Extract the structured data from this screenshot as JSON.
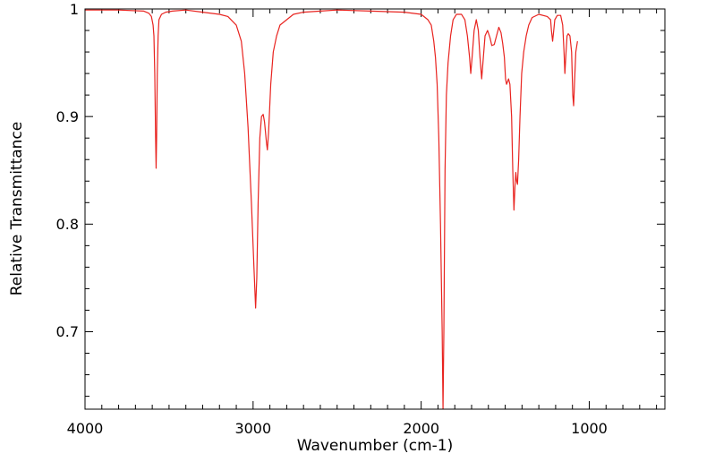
{
  "chart_data": {
    "type": "line",
    "title": "",
    "xlabel": "Wavenumber (cm-1)",
    "ylabel": "Relative Transmittance",
    "xlim": [
      4000,
      550
    ],
    "ylim": [
      0.628,
      1.0
    ],
    "x_reversed": true,
    "grid": false,
    "legend": "none",
    "x_ticks": [
      {
        "value": 4000,
        "label": "4000"
      },
      {
        "value": 3000,
        "label": "3000"
      },
      {
        "value": 2000,
        "label": "2000"
      },
      {
        "value": 1000,
        "label": "1000"
      }
    ],
    "y_ticks": [
      {
        "value": 1.0,
        "label": "1"
      },
      {
        "value": 0.9,
        "label": "0.9"
      },
      {
        "value": 0.8,
        "label": "0.8"
      },
      {
        "value": 0.7,
        "label": "0.7"
      }
    ],
    "series": [
      {
        "color": "#e8231f",
        "points": [
          [
            4000,
            0.999
          ],
          [
            3800,
            0.999
          ],
          [
            3650,
            0.998
          ],
          [
            3620,
            0.996
          ],
          [
            3605,
            0.993
          ],
          [
            3595,
            0.985
          ],
          [
            3590,
            0.975
          ],
          [
            3585,
            0.94
          ],
          [
            3580,
            0.88
          ],
          [
            3577,
            0.852
          ],
          [
            3574,
            0.88
          ],
          [
            3570,
            0.94
          ],
          [
            3565,
            0.975
          ],
          [
            3560,
            0.99
          ],
          [
            3545,
            0.995
          ],
          [
            3520,
            0.997
          ],
          [
            3480,
            0.998
          ],
          [
            3400,
            0.999
          ],
          [
            3300,
            0.997
          ],
          [
            3200,
            0.995
          ],
          [
            3150,
            0.993
          ],
          [
            3100,
            0.985
          ],
          [
            3070,
            0.97
          ],
          [
            3050,
            0.94
          ],
          [
            3030,
            0.89
          ],
          [
            3010,
            0.82
          ],
          [
            2995,
            0.76
          ],
          [
            2985,
            0.722
          ],
          [
            2978,
            0.75
          ],
          [
            2970,
            0.82
          ],
          [
            2960,
            0.88
          ],
          [
            2950,
            0.9
          ],
          [
            2940,
            0.902
          ],
          [
            2932,
            0.895
          ],
          [
            2920,
            0.875
          ],
          [
            2915,
            0.869
          ],
          [
            2908,
            0.885
          ],
          [
            2895,
            0.93
          ],
          [
            2880,
            0.96
          ],
          [
            2860,
            0.975
          ],
          [
            2840,
            0.985
          ],
          [
            2800,
            0.99
          ],
          [
            2760,
            0.995
          ],
          [
            2700,
            0.997
          ],
          [
            2600,
            0.998
          ],
          [
            2500,
            0.999
          ],
          [
            2300,
            0.998
          ],
          [
            2100,
            0.997
          ],
          [
            2000,
            0.995
          ],
          [
            1960,
            0.99
          ],
          [
            1940,
            0.985
          ],
          [
            1925,
            0.97
          ],
          [
            1915,
            0.955
          ],
          [
            1905,
            0.93
          ],
          [
            1895,
            0.88
          ],
          [
            1885,
            0.8
          ],
          [
            1875,
            0.7
          ],
          [
            1870,
            0.628
          ],
          [
            1865,
            0.7
          ],
          [
            1858,
            0.85
          ],
          [
            1850,
            0.92
          ],
          [
            1840,
            0.95
          ],
          [
            1825,
            0.975
          ],
          [
            1810,
            0.99
          ],
          [
            1790,
            0.995
          ],
          [
            1760,
            0.995
          ],
          [
            1740,
            0.99
          ],
          [
            1725,
            0.975
          ],
          [
            1712,
            0.955
          ],
          [
            1705,
            0.94
          ],
          [
            1697,
            0.955
          ],
          [
            1685,
            0.98
          ],
          [
            1672,
            0.99
          ],
          [
            1660,
            0.98
          ],
          [
            1650,
            0.955
          ],
          [
            1640,
            0.935
          ],
          [
            1630,
            0.955
          ],
          [
            1620,
            0.975
          ],
          [
            1605,
            0.98
          ],
          [
            1590,
            0.973
          ],
          [
            1580,
            0.966
          ],
          [
            1565,
            0.967
          ],
          [
            1550,
            0.976
          ],
          [
            1538,
            0.983
          ],
          [
            1525,
            0.978
          ],
          [
            1515,
            0.968
          ],
          [
            1505,
            0.955
          ],
          [
            1498,
            0.935
          ],
          [
            1492,
            0.93
          ],
          [
            1480,
            0.935
          ],
          [
            1472,
            0.93
          ],
          [
            1462,
            0.9
          ],
          [
            1455,
            0.85
          ],
          [
            1448,
            0.813
          ],
          [
            1442,
            0.835
          ],
          [
            1437,
            0.848
          ],
          [
            1432,
            0.84
          ],
          [
            1427,
            0.837
          ],
          [
            1420,
            0.86
          ],
          [
            1412,
            0.9
          ],
          [
            1402,
            0.94
          ],
          [
            1390,
            0.96
          ],
          [
            1375,
            0.975
          ],
          [
            1360,
            0.985
          ],
          [
            1340,
            0.992
          ],
          [
            1300,
            0.995
          ],
          [
            1250,
            0.993
          ],
          [
            1230,
            0.99
          ],
          [
            1225,
            0.98
          ],
          [
            1218,
            0.97
          ],
          [
            1210,
            0.982
          ],
          [
            1205,
            0.99
          ],
          [
            1190,
            0.994
          ],
          [
            1170,
            0.994
          ],
          [
            1158,
            0.985
          ],
          [
            1150,
            0.96
          ],
          [
            1145,
            0.94
          ],
          [
            1138,
            0.96
          ],
          [
            1132,
            0.975
          ],
          [
            1125,
            0.977
          ],
          [
            1115,
            0.975
          ],
          [
            1105,
            0.96
          ],
          [
            1098,
            0.92
          ],
          [
            1093,
            0.91
          ],
          [
            1088,
            0.93
          ],
          [
            1080,
            0.96
          ],
          [
            1070,
            0.97
          ]
        ]
      }
    ]
  }
}
